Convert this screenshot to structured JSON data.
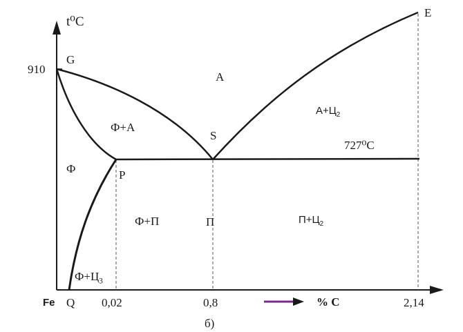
{
  "axes": {
    "y_label": "t⁰C",
    "x_label": "% C",
    "origin_label": "Fe",
    "y_tick_910": "910",
    "x_ticks": [
      "0,02",
      "0,8",
      "2,14"
    ]
  },
  "points": {
    "G": "G",
    "E": "E",
    "S": "S",
    "P": "P",
    "Q": "Q"
  },
  "regions": {
    "austenite": "А",
    "austenite_cementite": "А+Ц",
    "austenite_cementite_sub": "2",
    "ferrite_austenite": "Ф+А",
    "ferrite": "Ф",
    "ferrite_pearlite": "Ф+П",
    "pearlite": "П",
    "pearlite_cementite": "П+Ц",
    "pearlite_cementite_sub": "2",
    "ferrite_cementite": "Ф+Ц",
    "ferrite_cementite_sub": "3"
  },
  "eutectoid_temperature": "727⁰С",
  "caption": "б)",
  "colors": {
    "line": "#1a1a1a",
    "arrow": "#7a2a8a"
  }
}
